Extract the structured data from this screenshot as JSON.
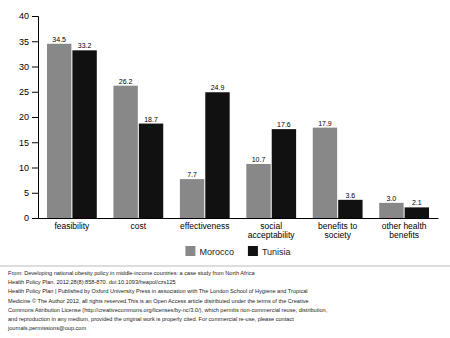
{
  "chart_data": {
    "type": "bar",
    "categories": [
      "feasibility",
      "cost",
      "effectiveness",
      "social\nacceptability",
      "benefits to\nsociety",
      "other health\nbenefits"
    ],
    "series": [
      {
        "name": "Morocco",
        "color": "#888888",
        "values": [
          34.5,
          26.2,
          7.7,
          10.7,
          17.9,
          3.0
        ],
        "value_labels": [
          "34.5",
          "26.2",
          "7.7",
          "10.7",
          "17.9",
          "3.0"
        ]
      },
      {
        "name": "Tunisia",
        "color": "#111111",
        "values": [
          33.2,
          18.7,
          24.9,
          17.6,
          3.6,
          2.1
        ],
        "value_labels": [
          "33.2",
          "18.7",
          "24.9",
          "17.6",
          "3.6",
          "2.1"
        ]
      }
    ],
    "ylim": [
      0,
      40
    ],
    "yticks": [
      0,
      5,
      10,
      15,
      20,
      25,
      30,
      35,
      40
    ],
    "grid": false,
    "legend": "bottom",
    "data_labels": true,
    "annotations": [
      "From: Developing national obesity policy in middle-income countries: a case study from North Africa",
      "Health Policy Plan. 2012;28(8):858-870. doi:10.1093/heapol/czs125",
      "Health Policy Plan | Published by Oxford University Press in association with The London School of Hygiene and Tropical",
      "Medicine © The Author 2012, all rights reserved.This is an Open Access article distributed under the terms of the Creative",
      "Commons Attribution License (http://creativecommons.org/licenses/by-nc/3.0/), which permits non-commercial reuse, distribution,",
      "and reproduction in any medium, provided the original work is properly cited. For commercial re-use, please contact",
      "journals.permissions@oup.com"
    ]
  }
}
